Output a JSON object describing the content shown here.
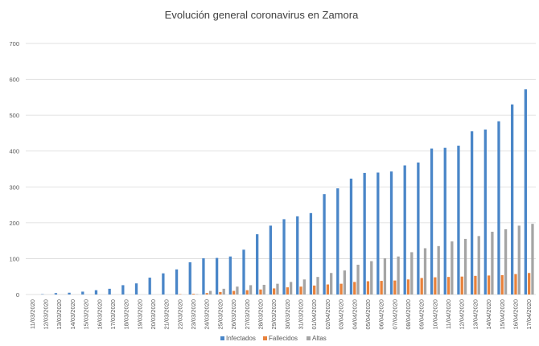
{
  "chart_data": {
    "type": "bar",
    "title": "Evolución general coronavirus en Zamora",
    "xlabel": "",
    "ylabel": "",
    "ylim": [
      0,
      700
    ],
    "yticks": [
      0,
      100,
      200,
      300,
      400,
      500,
      600,
      700
    ],
    "grid": true,
    "legend_position": "bottom",
    "colors": {
      "Infectados": "#4a86c8",
      "Fallecidos": "#e8823c",
      "Altas": "#a5a5a5",
      "grid": "#d9d9d9",
      "axis_text": "#595959"
    },
    "categories": [
      "11/03/2020",
      "12/03/2020",
      "13/03/2020",
      "14/03/2020",
      "15/03/2020",
      "16/03/2020",
      "17/03/2020",
      "18/03/2020",
      "19/03/2020",
      "20/03/2020",
      "21/03/2020",
      "22/03/2020",
      "23/03/2020",
      "24/03/2020",
      "25/03/2020",
      "26/03/2020",
      "27/03/2020",
      "28/03/2020",
      "29/03/2020",
      "30/03/2020",
      "31/03/2020",
      "01/04/2020",
      "02/04/2020",
      "03/04/2020",
      "04/04/2020",
      "05/04/2020",
      "06/04/2020",
      "07/04/2020",
      "08/04/2020",
      "09/04/2020",
      "10/04/2020",
      "11/04/2020",
      "12/04/2020",
      "13/04/2020",
      "14/04/2020",
      "15/04/2020",
      "16/04/2020",
      "17/04/2020"
    ],
    "series": [
      {
        "name": "Infectados",
        "values": [
          0,
          1,
          4,
          5,
          8,
          12,
          16,
          26,
          31,
          47,
          59,
          70,
          90,
          101,
          102,
          106,
          125,
          168,
          192,
          210,
          218,
          227,
          280,
          296,
          323,
          339,
          340,
          343,
          360,
          368,
          407,
          409,
          415,
          455,
          460,
          483,
          530,
          572
        ]
      },
      {
        "name": "Fallecidos",
        "values": [
          0,
          0,
          0,
          0,
          0,
          0,
          0,
          0,
          0,
          0,
          0,
          1,
          2,
          4,
          7,
          10,
          12,
          14,
          17,
          20,
          22,
          25,
          28,
          30,
          35,
          37,
          38,
          39,
          42,
          46,
          48,
          49,
          50,
          52,
          53,
          54,
          57,
          60
        ]
      },
      {
        "name": "Altas",
        "values": [
          0,
          0,
          0,
          0,
          0,
          0,
          0,
          0,
          0,
          0,
          0,
          0,
          1,
          10,
          16,
          22,
          26,
          27,
          30,
          35,
          42,
          49,
          60,
          67,
          83,
          93,
          101,
          106,
          118,
          129,
          135,
          148,
          155,
          163,
          175,
          182,
          192,
          197
        ]
      }
    ]
  }
}
